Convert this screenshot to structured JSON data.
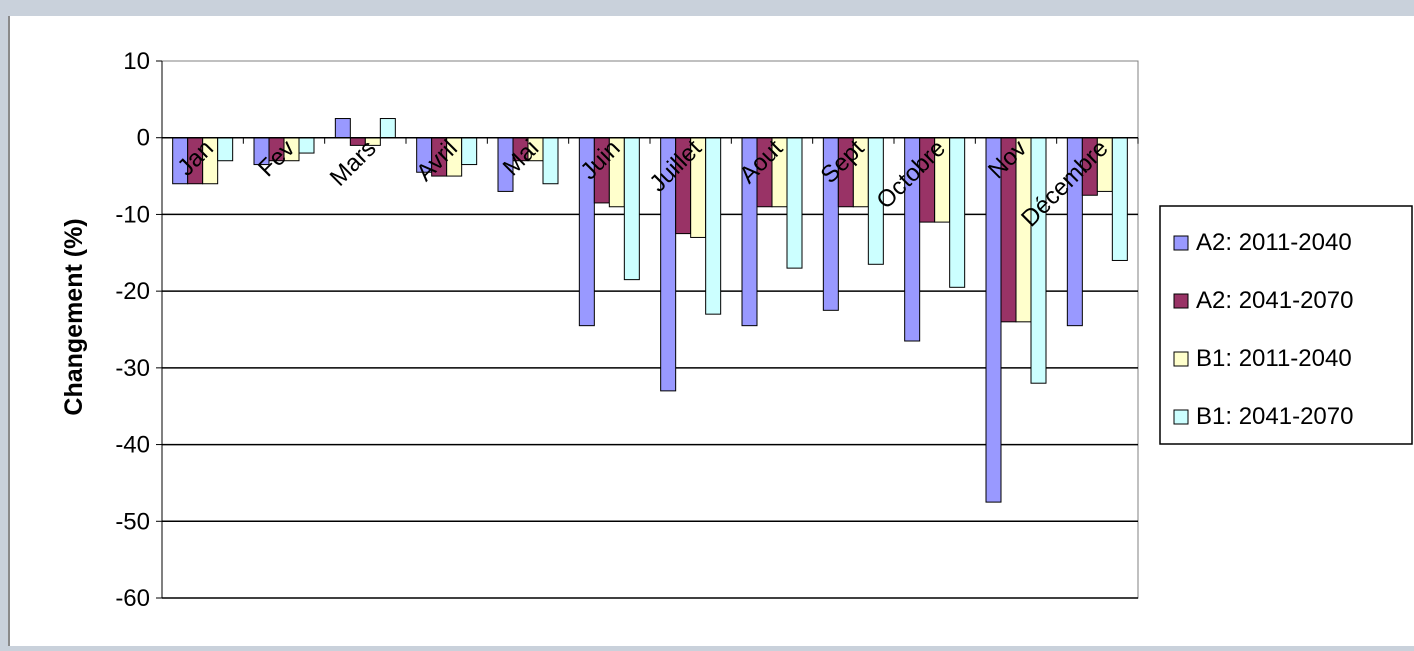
{
  "chart_data": {
    "type": "bar",
    "title": "",
    "xlabel": "",
    "ylabel": "Changement (%)",
    "ylim": [
      -60,
      10
    ],
    "yticks": [
      10,
      0,
      -10,
      -20,
      -30,
      -40,
      -50,
      -60
    ],
    "grid": true,
    "legend_position": "right",
    "categories": [
      "Jan",
      "Fev",
      "Mars",
      "Avril",
      "Mai",
      "Juin",
      "Juillet",
      "Aout",
      "Sept",
      "Octobre",
      "Nov",
      "Décembre"
    ],
    "series": [
      {
        "name": "A2: 2011-2040",
        "color": "#9999ff",
        "values": [
          -6,
          -3.5,
          2.5,
          -4.5,
          -7,
          -24.5,
          -33,
          -24.5,
          -22.5,
          -26.5,
          -47.5,
          -24.5
        ]
      },
      {
        "name": "A2: 2041-2070",
        "color": "#993366",
        "values": [
          -6,
          -3,
          -1,
          -5,
          -3,
          -8.5,
          -12.5,
          -9,
          -9,
          -11,
          -24,
          -7.5
        ]
      },
      {
        "name": "B1: 2011-2040",
        "color": "#ffffcc",
        "values": [
          -6,
          -3,
          -1,
          -5,
          -3,
          -9,
          -13,
          -9,
          -9,
          -11,
          -24,
          -7
        ]
      },
      {
        "name": "B1: 2041-2070",
        "color": "#ccffff",
        "values": [
          -3,
          -2,
          2.5,
          -3.5,
          -6,
          -18.5,
          -23,
          -17,
          -16.5,
          -19.5,
          -32,
          -16
        ]
      }
    ]
  }
}
